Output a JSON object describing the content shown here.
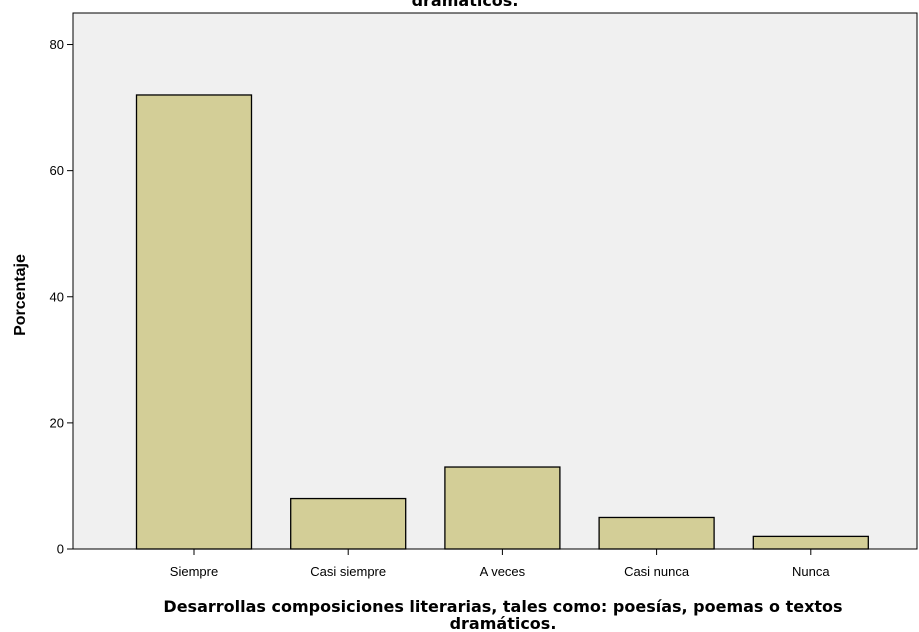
{
  "chart_data": {
    "type": "bar",
    "title_visible_part": "dramáticos.",
    "xlabel_lines": [
      "Desarrollas composiciones literarias, tales como: poesías, poemas o textos",
      "dramáticos."
    ],
    "ylabel": "Porcentaje",
    "categories": [
      "Siempre",
      "Casi siempre",
      "A veces",
      "Casi nunca",
      "Nunca"
    ],
    "values": [
      72,
      8,
      13,
      5,
      2
    ],
    "ylim": [
      0,
      85
    ],
    "yticks": [
      0,
      20,
      40,
      60,
      80
    ],
    "grid": false,
    "legend": "none",
    "colors": {
      "bar_fill": "#d3ce97",
      "bar_stroke": "#000000",
      "plot_background": "#f0f0f0",
      "axis": "#000000"
    }
  }
}
